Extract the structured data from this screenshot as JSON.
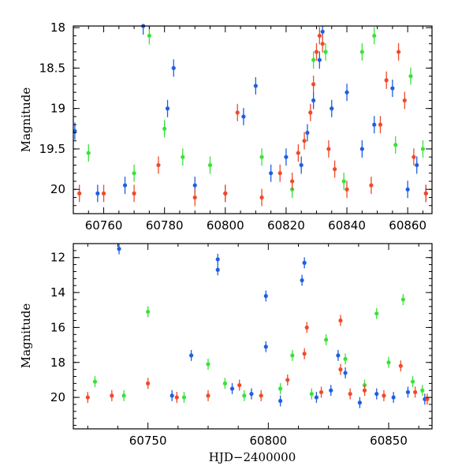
{
  "figure": {
    "shared_xlabel": "HJD−2400000",
    "colors": {
      "blue": "#1f5fe0",
      "green": "#39e23a",
      "red": "#f04a2a"
    }
  },
  "chart_data": [
    {
      "type": "scatter",
      "title": "",
      "xlabel": "",
      "ylabel": "Magnitude",
      "xlim": [
        60750,
        60868
      ],
      "ylim": [
        20.3,
        17.98
      ],
      "y_inverted": true,
      "grid": false,
      "x_ticks": [
        60760,
        60780,
        60800,
        60820,
        60840,
        60860
      ],
      "y_ticks": [
        18,
        18.5,
        19,
        19.5,
        20
      ],
      "y_tick_labels": [
        "18",
        "18.5",
        "19",
        "19.5",
        "20"
      ],
      "series": [
        {
          "color_key": "blue",
          "values": [
            [
              60750.5,
              19.28
            ],
            [
              60758,
              20.05
            ],
            [
              60767,
              19.95
            ],
            [
              60773,
              17.98
            ],
            [
              60781,
              19.0
            ],
            [
              60783,
              18.5
            ],
            [
              60790,
              19.95
            ],
            [
              60800,
              20.05
            ],
            [
              60806,
              19.1
            ],
            [
              60810,
              18.72
            ],
            [
              60815,
              19.8
            ],
            [
              60820,
              19.6
            ],
            [
              60825,
              19.7
            ],
            [
              60827,
              19.3
            ],
            [
              60829,
              18.9
            ],
            [
              60831,
              18.4
            ],
            [
              60832,
              18.05
            ],
            [
              60835,
              19.0
            ],
            [
              60840,
              18.8
            ],
            [
              60845,
              19.5
            ],
            [
              60849,
              19.2
            ],
            [
              60855,
              18.75
            ],
            [
              60860,
              20.0
            ],
            [
              60863,
              19.7
            ],
            [
              60866,
              20.05
            ]
          ]
        },
        {
          "color_key": "green",
          "values": [
            [
              60755,
              19.55
            ],
            [
              60770,
              19.8
            ],
            [
              60775,
              18.1
            ],
            [
              60780,
              19.25
            ],
            [
              60786,
              19.6
            ],
            [
              60795,
              19.7
            ],
            [
              60812,
              19.6
            ],
            [
              60822,
              20.0
            ],
            [
              60829,
              18.4
            ],
            [
              60833,
              18.3
            ],
            [
              60839,
              19.9
            ],
            [
              60845,
              18.3
            ],
            [
              60849,
              18.1
            ],
            [
              60856,
              19.45
            ],
            [
              60861,
              18.6
            ],
            [
              60865,
              19.5
            ]
          ]
        },
        {
          "color_key": "red",
          "values": [
            [
              60752,
              20.05
            ],
            [
              60760,
              20.05
            ],
            [
              60770,
              20.05
            ],
            [
              60778,
              19.7
            ],
            [
              60790,
              20.1
            ],
            [
              60800,
              20.05
            ],
            [
              60804,
              19.05
            ],
            [
              60812,
              20.1
            ],
            [
              60818,
              19.8
            ],
            [
              60822,
              19.9
            ],
            [
              60824,
              19.55
            ],
            [
              60826,
              19.4
            ],
            [
              60828,
              19.05
            ],
            [
              60829,
              18.7
            ],
            [
              60830,
              18.3
            ],
            [
              60831,
              18.1
            ],
            [
              60832,
              18.2
            ],
            [
              60834,
              19.5
            ],
            [
              60836,
              19.75
            ],
            [
              60840,
              20.0
            ],
            [
              60848,
              19.95
            ],
            [
              60851,
              19.2
            ],
            [
              60853,
              18.65
            ],
            [
              60857,
              18.3
            ],
            [
              60859,
              18.9
            ],
            [
              60862,
              19.6
            ],
            [
              60866,
              20.05
            ]
          ]
        }
      ]
    },
    {
      "type": "scatter",
      "title": "",
      "xlabel": "HJD−2400000",
      "ylabel": "Magnitude",
      "xlim": [
        60719,
        60868
      ],
      "ylim": [
        21.8,
        11.2
      ],
      "y_inverted": true,
      "grid": false,
      "x_ticks": [
        60750,
        60800,
        60850
      ],
      "y_ticks": [
        12,
        14,
        16,
        18,
        20
      ],
      "y_tick_labels": [
        "12",
        "14",
        "16",
        "18",
        "20"
      ],
      "series": [
        {
          "color_key": "blue",
          "values": [
            [
              60738,
              11.5
            ],
            [
              60760,
              19.9
            ],
            [
              60768,
              17.6
            ],
            [
              60779,
              12.1
            ],
            [
              60779,
              12.7
            ],
            [
              60785,
              19.5
            ],
            [
              60793,
              19.8
            ],
            [
              60799,
              14.2
            ],
            [
              60799,
              17.1
            ],
            [
              60805,
              20.2
            ],
            [
              60814,
              13.3
            ],
            [
              60815,
              12.3
            ],
            [
              60820,
              20.0
            ],
            [
              60826,
              19.6
            ],
            [
              60829,
              17.6
            ],
            [
              60832,
              18.6
            ],
            [
              60838,
              20.3
            ],
            [
              60845,
              19.8
            ],
            [
              60852,
              20.0
            ],
            [
              60858,
              19.7
            ],
            [
              60865,
              20.1
            ]
          ]
        },
        {
          "color_key": "green",
          "values": [
            [
              60728,
              19.1
            ],
            [
              60740,
              19.9
            ],
            [
              60750,
              15.1
            ],
            [
              60765,
              20.0
            ],
            [
              60775,
              18.1
            ],
            [
              60782,
              19.2
            ],
            [
              60790,
              19.9
            ],
            [
              60805,
              19.5
            ],
            [
              60810,
              17.6
            ],
            [
              60818,
              19.8
            ],
            [
              60824,
              16.7
            ],
            [
              60832,
              17.8
            ],
            [
              60840,
              19.3
            ],
            [
              60845,
              15.2
            ],
            [
              60850,
              18.0
            ],
            [
              60856,
              14.4
            ],
            [
              60860,
              19.1
            ],
            [
              60864,
              19.6
            ]
          ]
        },
        {
          "color_key": "red",
          "values": [
            [
              60725,
              20.0
            ],
            [
              60735,
              19.9
            ],
            [
              60750,
              19.2
            ],
            [
              60762,
              20.0
            ],
            [
              60775,
              19.9
            ],
            [
              60788,
              19.3
            ],
            [
              60797,
              19.9
            ],
            [
              60808,
              19.0
            ],
            [
              60815,
              17.5
            ],
            [
              60816,
              16.0
            ],
            [
              60822,
              19.7
            ],
            [
              60830,
              15.6
            ],
            [
              60830,
              18.4
            ],
            [
              60834,
              19.8
            ],
            [
              60840,
              19.6
            ],
            [
              60848,
              19.9
            ],
            [
              60855,
              18.2
            ],
            [
              60861,
              19.7
            ],
            [
              60866,
              20.1
            ]
          ]
        }
      ]
    }
  ]
}
